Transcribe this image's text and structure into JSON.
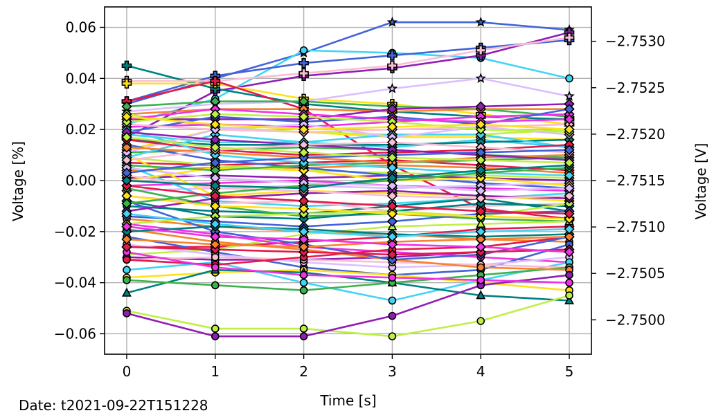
{
  "chart_data": {
    "type": "line",
    "title": "",
    "xlabel": "Time [s]",
    "ylabel": "Voltage [%]",
    "ylabel_right": "Voltage [V]",
    "footer": "Date: t2021-09-22T151228",
    "x": [
      0,
      1,
      2,
      3,
      4,
      5
    ],
    "xlim": [
      -0.25,
      5.25
    ],
    "ylim": [
      -0.068,
      0.068
    ],
    "ylim_right": [
      -2.74963,
      -2.75337
    ],
    "x_ticks": [
      0,
      1,
      2,
      3,
      4,
      5
    ],
    "x_tick_labels": [
      "0",
      "1",
      "2",
      "3",
      "4",
      "5"
    ],
    "y_ticks": [
      0.06,
      0.04,
      0.02,
      0.0,
      -0.02,
      -0.04,
      -0.06
    ],
    "y_tick_labels": [
      "0.06",
      "0.04",
      "0.02",
      "0.00",
      "−0.02",
      "−0.04",
      "−0.06"
    ],
    "y_right_ticks": [
      -2.753,
      -2.7525,
      -2.752,
      -2.7515,
      -2.751,
      -2.7505,
      -2.75
    ],
    "y_right_tick_labels": [
      "−2.7530",
      "−2.7525",
      "−2.7520",
      "−2.7515",
      "−2.7510",
      "−2.7505",
      "−2.7500"
    ],
    "grid": true,
    "series": [
      {
        "color": "#4363d8",
        "marker": "star",
        "values": [
          0.03,
          0.04,
          0.05,
          0.062,
          0.062,
          0.059
        ]
      },
      {
        "color": "#42d4f4",
        "marker": "circle",
        "values": [
          0.022,
          0.032,
          0.051,
          0.05,
          0.048,
          0.04
        ]
      },
      {
        "color": "#911eb4",
        "marker": "plus",
        "values": [
          0.017,
          0.035,
          0.041,
          0.044,
          0.049,
          0.058
        ]
      },
      {
        "color": "#4363d8",
        "marker": "plus",
        "values": [
          0.031,
          0.041,
          0.046,
          0.049,
          0.052,
          0.055
        ]
      },
      {
        "color": "#008080",
        "marker": "plus",
        "values": [
          0.045,
          0.036,
          0.03,
          0.027,
          0.025,
          0.024
        ]
      },
      {
        "color": "#fabed4",
        "marker": "plus",
        "values": [
          0.039,
          0.039,
          0.042,
          0.045,
          0.051,
          0.056
        ]
      },
      {
        "color": "#ffe119",
        "marker": "plus",
        "values": [
          0.038,
          0.038,
          0.032,
          0.03,
          0.026,
          0.022
        ]
      },
      {
        "color": "#e6194b",
        "marker": "plus",
        "values": [
          0.031,
          0.039,
          0.028,
          0.006,
          -0.011,
          -0.015
        ]
      },
      {
        "color": "#dcbeff",
        "marker": "star",
        "values": [
          0.027,
          0.03,
          0.031,
          0.036,
          0.04,
          0.033
        ]
      },
      {
        "color": "#3cb44b",
        "marker": "diamond",
        "values": [
          0.029,
          0.031,
          0.031,
          0.029,
          0.028,
          0.025
        ]
      },
      {
        "color": "#f58231",
        "marker": "diamond",
        "values": [
          0.026,
          0.028,
          0.028,
          0.027,
          0.028,
          0.028
        ]
      },
      {
        "color": "#911eb4",
        "marker": "diamond",
        "values": [
          0.024,
          0.024,
          0.024,
          0.028,
          0.029,
          0.03
        ]
      },
      {
        "color": "#bfef45",
        "marker": "diamond",
        "values": [
          0.026,
          0.021,
          0.019,
          0.018,
          0.018,
          0.02
        ]
      },
      {
        "color": "#f032e6",
        "marker": "diamond",
        "values": [
          0.021,
          0.022,
          0.021,
          0.023,
          0.025,
          0.026
        ]
      },
      {
        "color": "#4363d8",
        "marker": "diamond",
        "values": [
          0.019,
          0.025,
          0.023,
          0.025,
          0.022,
          0.028
        ]
      },
      {
        "color": "#ffe119",
        "marker": "diamond",
        "values": [
          0.012,
          0.02,
          0.019,
          0.017,
          0.017,
          0.016
        ]
      },
      {
        "color": "#42d4f4",
        "marker": "diamond",
        "values": [
          0.018,
          0.015,
          0.015,
          0.013,
          0.016,
          0.013
        ]
      },
      {
        "color": "#008080",
        "marker": "diamond",
        "values": [
          0.016,
          0.014,
          0.014,
          0.014,
          0.015,
          0.016
        ]
      },
      {
        "color": "#fabed4",
        "marker": "diamond",
        "values": [
          0.022,
          0.02,
          0.019,
          0.02,
          0.021,
          0.022
        ]
      },
      {
        "color": "#3cb44b",
        "marker": "diamond",
        "values": [
          0.011,
          0.012,
          0.013,
          0.012,
          0.01,
          0.009
        ]
      },
      {
        "color": "#e6194b",
        "marker": "diamond",
        "values": [
          0.007,
          0.006,
          0.007,
          0.008,
          0.006,
          0.004
        ]
      },
      {
        "color": "#f58231",
        "marker": "diamond",
        "values": [
          0.004,
          0.005,
          0.005,
          0.006,
          0.005,
          0.003
        ]
      },
      {
        "color": "#bfef45",
        "marker": "diamond",
        "values": [
          0.009,
          0.006,
          0.004,
          0.003,
          0.002,
          0.001
        ]
      },
      {
        "color": "#911eb4",
        "marker": "diamond",
        "values": [
          0.001,
          0.002,
          0.001,
          0.002,
          0.001,
          0.0
        ]
      },
      {
        "color": "#f032e6",
        "marker": "diamond",
        "values": [
          -0.002,
          -0.001,
          0.0,
          -0.002,
          -0.003,
          -0.004
        ]
      },
      {
        "color": "#4363d8",
        "marker": "diamond",
        "values": [
          0.014,
          0.008,
          0.005,
          0.002,
          -0.001,
          -0.003
        ]
      },
      {
        "color": "#dcbeff",
        "marker": "diamond",
        "values": [
          -0.004,
          -0.003,
          -0.002,
          -0.003,
          -0.002,
          -0.001
        ]
      },
      {
        "color": "#ffe119",
        "marker": "diamond",
        "values": [
          0.01,
          -0.006,
          -0.004,
          -0.005,
          -0.006,
          -0.008
        ]
      },
      {
        "color": "#42d4f4",
        "marker": "circle",
        "values": [
          0.006,
          -0.008,
          -0.01,
          -0.009,
          -0.007,
          -0.005
        ]
      },
      {
        "color": "#008080",
        "marker": "circle",
        "values": [
          -0.01,
          -0.012,
          -0.013,
          -0.01,
          -0.007,
          -0.012
        ]
      },
      {
        "color": "#fabed4",
        "marker": "circle",
        "values": [
          -0.006,
          -0.009,
          -0.008,
          -0.012,
          -0.01,
          -0.009
        ]
      },
      {
        "color": "#3cb44b",
        "marker": "circle",
        "values": [
          -0.003,
          -0.01,
          -0.014,
          -0.013,
          -0.015,
          -0.016
        ]
      },
      {
        "color": "#e6194b",
        "marker": "diamond",
        "values": [
          -0.026,
          -0.026,
          -0.024,
          -0.022,
          -0.019,
          -0.018
        ]
      },
      {
        "color": "#f58231",
        "marker": "circle",
        "values": [
          -0.015,
          -0.018,
          -0.02,
          -0.021,
          -0.023,
          -0.024
        ]
      },
      {
        "color": "#bfef45",
        "marker": "triangle",
        "values": [
          -0.029,
          -0.027,
          -0.021,
          -0.018,
          -0.017,
          -0.016
        ]
      },
      {
        "color": "#911eb4",
        "marker": "circle",
        "values": [
          -0.03,
          -0.031,
          -0.031,
          -0.03,
          -0.028,
          -0.027
        ]
      },
      {
        "color": "#f032e6",
        "marker": "circle",
        "values": [
          -0.017,
          -0.021,
          -0.026,
          -0.028,
          -0.03,
          -0.032
        ]
      },
      {
        "color": "#4363d8",
        "marker": "circle",
        "values": [
          -0.022,
          -0.028,
          -0.034,
          -0.037,
          -0.035,
          -0.025
        ]
      },
      {
        "color": "#dcbeff",
        "marker": "circle",
        "values": [
          -0.025,
          -0.029,
          -0.032,
          -0.034,
          -0.033,
          -0.03
        ]
      },
      {
        "color": "#ffe119",
        "marker": "circle",
        "values": [
          -0.038,
          -0.036,
          -0.035,
          -0.037,
          -0.04,
          -0.043
        ]
      },
      {
        "color": "#42d4f4",
        "marker": "circle",
        "values": [
          -0.035,
          -0.032,
          -0.04,
          -0.047,
          -0.039,
          -0.032
        ]
      },
      {
        "color": "#008080",
        "marker": "triangle",
        "values": [
          -0.044,
          -0.035,
          -0.036,
          -0.04,
          -0.045,
          -0.047
        ]
      },
      {
        "color": "#fabed4",
        "marker": "circle",
        "values": [
          -0.031,
          -0.03,
          -0.031,
          -0.032,
          -0.033,
          -0.034
        ]
      },
      {
        "color": "#3cb44b",
        "marker": "circle",
        "values": [
          -0.039,
          -0.041,
          -0.043,
          -0.04,
          -0.037,
          -0.034
        ]
      },
      {
        "color": "#e6194b",
        "marker": "circle",
        "values": [
          -0.031,
          -0.033,
          -0.03,
          -0.027,
          -0.026,
          -0.022
        ]
      },
      {
        "color": "#f58231",
        "marker": "circle",
        "values": [
          -0.019,
          -0.024,
          -0.027,
          -0.031,
          -0.034,
          -0.035
        ]
      },
      {
        "color": "#bfef45",
        "marker": "circle",
        "values": [
          -0.051,
          -0.058,
          -0.058,
          -0.061,
          -0.055,
          -0.045
        ]
      },
      {
        "color": "#911eb4",
        "marker": "circle",
        "values": [
          -0.052,
          -0.061,
          -0.061,
          -0.053,
          -0.041,
          -0.037
        ]
      },
      {
        "color": "#f032e6",
        "marker": "circle",
        "values": [
          -0.028,
          -0.034,
          -0.037,
          -0.038,
          -0.039,
          -0.04
        ]
      },
      {
        "color": "#4363d8",
        "marker": "diamond",
        "values": [
          -0.008,
          -0.02,
          -0.025,
          -0.031,
          -0.029,
          -0.022
        ]
      },
      {
        "color": "#e6194b",
        "marker": "diamond",
        "values": [
          -0.026,
          -0.027,
          -0.028,
          -0.029,
          -0.028,
          -0.027
        ]
      },
      {
        "color": "#42d4f4",
        "marker": "diamond",
        "values": [
          0.009,
          0.018,
          0.015,
          0.018,
          0.018,
          0.013
        ]
      },
      {
        "color": "#008080",
        "marker": "diamond",
        "values": [
          -0.008,
          -0.014,
          -0.015,
          -0.012,
          -0.009,
          -0.01
        ]
      },
      {
        "color": "#dcbeff",
        "marker": "diamond",
        "values": [
          0.011,
          0.02,
          0.022,
          0.017,
          0.021,
          0.018
        ]
      },
      {
        "color": "#ffe119",
        "marker": "diamond",
        "values": [
          0.0,
          0.005,
          0.004,
          0.0,
          0.001,
          -0.002
        ]
      },
      {
        "color": "#bfef45",
        "marker": "diamond",
        "values": [
          -0.017,
          -0.014,
          -0.013,
          -0.012,
          -0.014,
          -0.009
        ]
      },
      {
        "color": "#3cb44b",
        "marker": "diamond",
        "values": [
          0.006,
          0.004,
          0.006,
          0.007,
          0.008,
          0.009
        ]
      },
      {
        "color": "#f58231",
        "marker": "diamond",
        "values": [
          0.013,
          0.011,
          0.009,
          0.007,
          0.009,
          0.01
        ]
      },
      {
        "color": "#911eb4",
        "marker": "diamond",
        "values": [
          -0.012,
          -0.007,
          -0.005,
          -0.004,
          -0.006,
          -0.007
        ]
      },
      {
        "color": "#fabed4",
        "marker": "diamond",
        "values": [
          0.002,
          -0.003,
          -0.004,
          -0.006,
          -0.007,
          -0.006
        ]
      },
      {
        "color": "#e6194b",
        "marker": "diamond",
        "values": [
          0.016,
          0.012,
          0.01,
          0.011,
          0.012,
          0.014
        ]
      },
      {
        "color": "#f032e6",
        "marker": "diamond",
        "values": [
          0.024,
          0.028,
          0.026,
          0.024,
          0.023,
          0.024
        ]
      },
      {
        "color": "#4363d8",
        "marker": "diamond",
        "values": [
          -0.014,
          -0.016,
          -0.018,
          -0.016,
          -0.013,
          -0.012
        ]
      },
      {
        "color": "#008080",
        "marker": "diamond",
        "values": [
          -0.02,
          -0.018,
          -0.019,
          -0.021,
          -0.022,
          -0.021
        ]
      },
      {
        "color": "#42d4f4",
        "marker": "diamond",
        "values": [
          0.02,
          0.01,
          0.007,
          0.005,
          0.003,
          0.002
        ]
      },
      {
        "color": "#bfef45",
        "marker": "diamond",
        "values": [
          0.023,
          0.026,
          0.025,
          0.023,
          0.02,
          0.019
        ]
      },
      {
        "color": "#ffe119",
        "marker": "diamond",
        "values": [
          -0.006,
          -0.01,
          -0.011,
          -0.013,
          -0.014,
          -0.015
        ]
      },
      {
        "color": "#3cb44b",
        "marker": "diamond",
        "values": [
          -0.009,
          -0.005,
          -0.002,
          0.0,
          0.003,
          0.005
        ]
      },
      {
        "color": "#dcbeff",
        "marker": "diamond",
        "values": [
          0.005,
          0.001,
          -0.001,
          -0.002,
          -0.004,
          -0.003
        ]
      },
      {
        "color": "#f58231",
        "marker": "diamond",
        "values": [
          -0.023,
          -0.025,
          -0.026,
          -0.024,
          -0.023,
          -0.022
        ]
      },
      {
        "color": "#e6194b",
        "marker": "diamond",
        "values": [
          -0.002,
          -0.006,
          -0.008,
          -0.01,
          -0.012,
          -0.013
        ]
      },
      {
        "color": "#911eb4",
        "marker": "diamond",
        "values": [
          0.019,
          0.016,
          0.014,
          0.012,
          0.01,
          0.008
        ]
      },
      {
        "color": "#fabed4",
        "marker": "diamond",
        "values": [
          0.008,
          0.012,
          0.014,
          0.015,
          0.013,
          0.011
        ]
      },
      {
        "color": "#f032e6",
        "marker": "diamond",
        "values": [
          -0.018,
          -0.022,
          -0.023,
          -0.025,
          -0.026,
          -0.028
        ]
      },
      {
        "color": "#4363d8",
        "marker": "diamond",
        "values": [
          0.003,
          0.007,
          0.009,
          0.01,
          0.011,
          0.012
        ]
      },
      {
        "color": "#008080",
        "marker": "diamond",
        "values": [
          0.0,
          -0.002,
          -0.003,
          0.001,
          0.004,
          0.006
        ]
      },
      {
        "color": "#42d4f4",
        "marker": "diamond",
        "values": [
          -0.013,
          -0.017,
          -0.02,
          -0.022,
          -0.02,
          -0.019
        ]
      },
      {
        "color": "#bfef45",
        "marker": "diamond",
        "values": [
          0.017,
          0.013,
          0.011,
          0.009,
          0.008,
          0.007
        ]
      },
      {
        "color": "#ffe119",
        "marker": "diamond",
        "values": [
          0.025,
          0.022,
          0.02,
          0.021,
          0.022,
          0.02
        ]
      }
    ]
  }
}
